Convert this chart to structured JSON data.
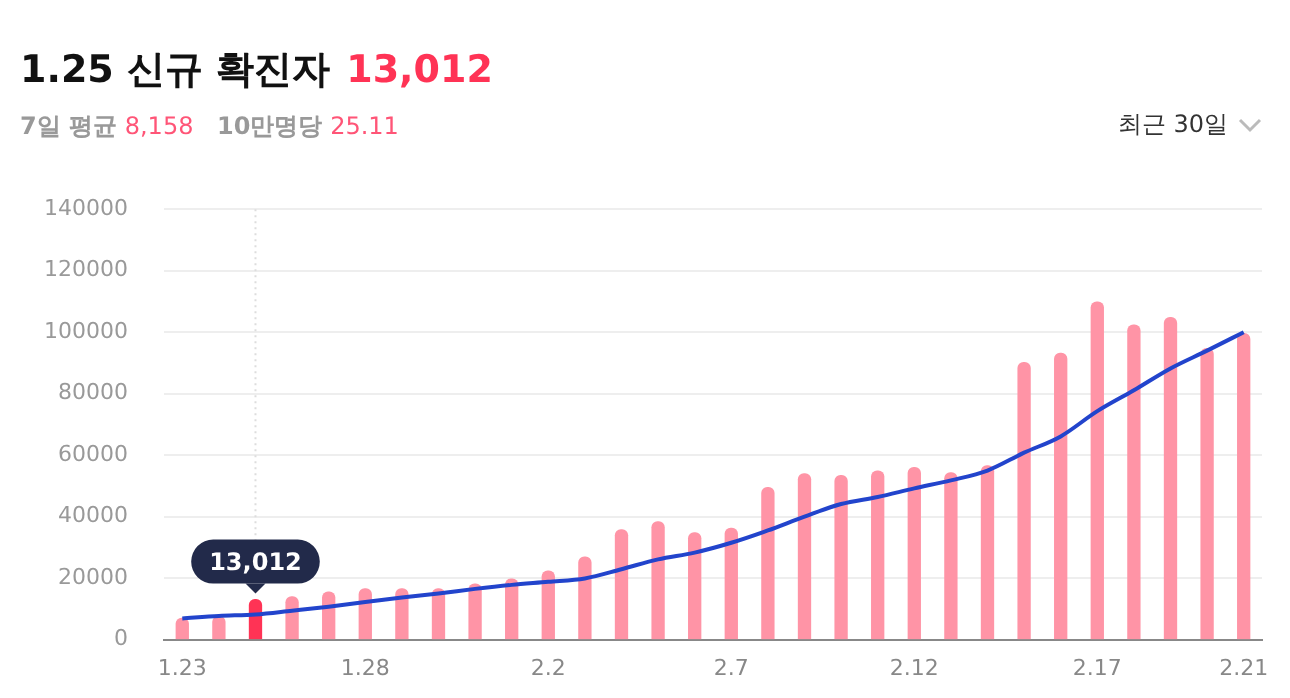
{
  "chart_data": {
    "type": "bar",
    "title": "1.25 신규 확진자",
    "annotations": [
      "13,012",
      "7일 평균",
      "8,158",
      "10만명당",
      "25.11",
      "최근 30일",
      {
        "text": "13,012",
        "y": 13012
      }
    ],
    "categories": [
      "1.23",
      null,
      null,
      null,
      null,
      "1.28",
      null,
      null,
      null,
      null,
      "2.2",
      null,
      null,
      null,
      null,
      "2.7",
      null,
      null,
      null,
      null,
      "2.12",
      null,
      null,
      null,
      null,
      "2.17",
      null,
      null,
      null,
      "2.21"
    ],
    "series": [
      {
        "colors": [
          "#ff94a6",
          "#ff94a6",
          "#ff3355",
          "#ff94a6",
          "#ff94a6",
          "#ff94a6",
          "#ff94a6",
          "#ff94a6",
          "#ff94a6",
          "#ff94a6",
          "#ff94a6",
          "#ff94a6",
          "#ff94a6",
          "#ff94a6",
          "#ff94a6",
          "#ff94a6",
          "#ff94a6",
          "#ff94a6",
          "#ff94a6",
          "#ff94a6",
          "#ff94a6",
          "#ff94a6",
          "#ff94a6",
          "#ff94a6",
          "#ff94a6",
          "#ff94a6",
          "#ff94a6",
          "#ff94a6",
          "#ff94a6",
          "#ff94a6"
        ],
        "values": [
          6900,
          7500,
          13012,
          13900,
          15400,
          16500,
          16500,
          16500,
          18000,
          19700,
          22300,
          26800,
          35700,
          38300,
          34700,
          36200,
          49400,
          53900,
          53300,
          54800,
          55900,
          54200,
          56500,
          90100,
          93100,
          109800,
          102300,
          104700,
          94600,
          99500
        ]
      },
      {
        "type": "line",
        "color": "#2244cc",
        "values": [
          6900,
          7700,
          8158,
          9400,
          10700,
          12200,
          13700,
          15000,
          16500,
          17800,
          18800,
          19900,
          22900,
          26100,
          28300,
          31500,
          35500,
          40000,
          44100,
          46400,
          49200,
          51800,
          55000,
          60800,
          66100,
          74300,
          81100,
          88200,
          94000,
          100000
        ]
      }
    ],
    "ylim": [
      0,
      140000
    ],
    "yticks": [
      0,
      20000,
      40000,
      60000,
      80000,
      100000,
      120000,
      140000
    ],
    "grid": "y",
    "legend": false,
    "marker": "none",
    "line_style": "solid"
  }
}
